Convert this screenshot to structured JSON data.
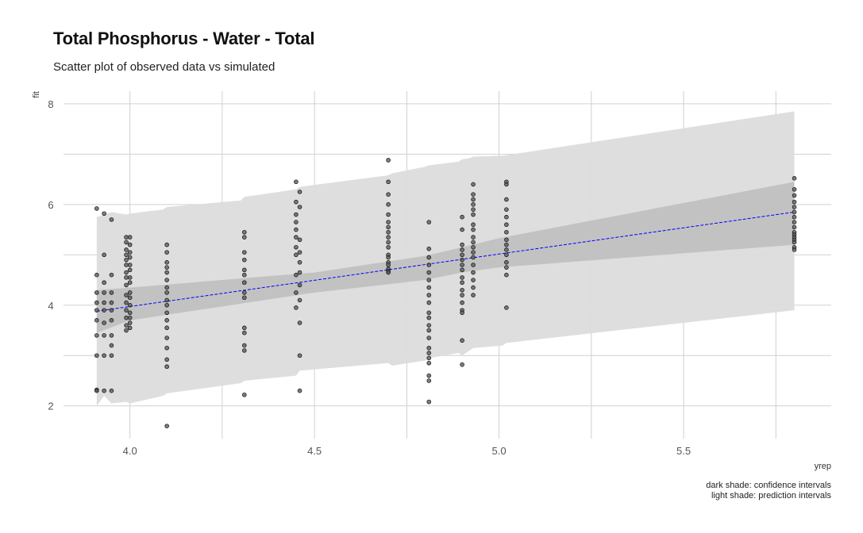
{
  "chart_data": {
    "type": "scatter",
    "title": "Total Phosphorus - Water - Total",
    "subtitle": "Scatter plot of observed data vs simulated",
    "xlabel": "yrep",
    "ylabel": "fit",
    "xlim": [
      3.82,
      5.9
    ],
    "ylim": [
      1.35,
      8.25
    ],
    "x_ticks": [
      "4.0",
      "4.5",
      "5.0",
      "5.5"
    ],
    "x_tick_values": [
      4.0,
      4.5,
      5.0,
      5.5
    ],
    "y_ticks": [
      "2",
      "4",
      "6",
      "8"
    ],
    "y_tick_values": [
      2,
      4,
      6,
      8
    ],
    "grid": true,
    "caption": [
      "dark shade: confidence intervals",
      "light shade: prediction intervals"
    ],
    "colors": {
      "points": "#555555",
      "point_outline": "#1a1a1a",
      "fit_line": "#0000ff",
      "confidence_band": "#bdbdbd",
      "prediction_band": "#dcdcdc",
      "grid": "#d0d0d0"
    },
    "fit_line": {
      "x": [
        3.91,
        5.8
      ],
      "y": [
        3.88,
        5.85
      ]
    },
    "confidence_band": {
      "x": [
        3.91,
        4.0,
        4.5,
        4.8,
        4.9,
        5.0,
        5.8
      ],
      "upper": [
        4.3,
        4.35,
        4.65,
        4.98,
        5.15,
        5.33,
        6.45
      ],
      "lower": [
        3.45,
        3.7,
        4.25,
        4.5,
        4.65,
        4.75,
        5.2
      ]
    },
    "prediction_band": {
      "x": [
        3.91,
        3.93,
        3.95,
        3.99,
        4.0,
        4.09,
        4.1,
        4.3,
        4.31,
        4.45,
        4.46,
        4.7,
        4.71,
        4.8,
        4.81,
        4.89,
        4.9,
        4.92,
        4.93,
        5.01,
        5.02,
        5.8
      ],
      "upper": [
        5.75,
        5.8,
        5.85,
        5.8,
        5.82,
        5.9,
        5.95,
        6.08,
        6.15,
        6.3,
        6.35,
        6.58,
        6.62,
        6.75,
        6.78,
        6.85,
        6.9,
        6.92,
        6.95,
        6.97,
        6.98,
        7.85
      ],
      "lower": [
        2.0,
        2.2,
        2.05,
        2.08,
        2.05,
        2.2,
        2.25,
        2.45,
        2.5,
        2.6,
        2.7,
        2.85,
        2.8,
        2.9,
        2.95,
        3.05,
        3.0,
        3.1,
        3.15,
        3.2,
        3.25,
        3.9
      ]
    },
    "points": {
      "x": [
        3.91,
        3.91,
        3.91,
        3.91,
        3.91,
        3.91,
        3.91,
        3.91,
        3.91,
        3.91,
        3.93,
        3.93,
        3.93,
        3.93,
        3.93,
        3.93,
        3.93,
        3.93,
        3.93,
        3.93,
        3.95,
        3.95,
        3.95,
        3.95,
        3.95,
        3.95,
        3.95,
        3.95,
        3.95,
        3.95,
        3.99,
        3.99,
        3.99,
        3.99,
        3.99,
        3.99,
        3.99,
        3.99,
        3.99,
        3.99,
        3.99,
        3.99,
        3.99,
        3.99,
        3.99,
        4.0,
        4.0,
        4.0,
        4.0,
        4.0,
        4.0,
        4.0,
        4.0,
        4.0,
        4.0,
        4.0,
        4.0,
        4.0,
        4.0,
        4.0,
        4.1,
        4.1,
        4.1,
        4.1,
        4.1,
        4.1,
        4.1,
        4.1,
        4.1,
        4.1,
        4.1,
        4.1,
        4.1,
        4.1,
        4.1,
        4.1,
        4.1,
        4.1,
        4.31,
        4.31,
        4.31,
        4.31,
        4.31,
        4.31,
        4.31,
        4.31,
        4.31,
        4.31,
        4.31,
        4.31,
        4.31,
        4.31,
        4.45,
        4.45,
        4.45,
        4.45,
        4.45,
        4.45,
        4.45,
        4.45,
        4.45,
        4.45,
        4.45,
        4.46,
        4.46,
        4.46,
        4.46,
        4.46,
        4.46,
        4.46,
        4.46,
        4.46,
        4.46,
        4.46,
        4.7,
        4.7,
        4.7,
        4.7,
        4.7,
        4.7,
        4.7,
        4.7,
        4.7,
        4.7,
        4.7,
        4.7,
        4.7,
        4.7,
        4.7,
        4.7,
        4.7,
        4.7,
        4.81,
        4.81,
        4.81,
        4.81,
        4.81,
        4.81,
        4.81,
        4.81,
        4.81,
        4.81,
        4.81,
        4.81,
        4.81,
        4.81,
        4.81,
        4.81,
        4.81,
        4.81,
        4.81,
        4.81,
        4.81,
        4.9,
        4.9,
        4.9,
        4.9,
        4.9,
        4.9,
        4.9,
        4.9,
        4.9,
        4.9,
        4.9,
        4.9,
        4.9,
        4.9,
        4.9,
        4.9,
        4.9,
        4.93,
        4.93,
        4.93,
        4.93,
        4.93,
        4.93,
        4.93,
        4.93,
        4.93,
        4.93,
        4.93,
        4.93,
        4.93,
        4.93,
        4.93,
        4.93,
        4.93,
        4.93,
        5.02,
        5.02,
        5.02,
        5.02,
        5.02,
        5.02,
        5.02,
        5.02,
        5.02,
        5.02,
        5.02,
        5.02,
        5.02,
        5.02,
        5.02,
        5.8,
        5.8,
        5.8,
        5.8,
        5.8,
        5.8,
        5.8,
        5.8,
        5.8,
        5.8,
        5.8,
        5.8,
        5.8,
        5.8,
        5.8,
        5.8
      ],
      "y": [
        5.92,
        4.6,
        4.25,
        4.05,
        3.9,
        3.7,
        3.4,
        3.0,
        2.32,
        2.3,
        5.82,
        5.0,
        4.45,
        4.25,
        4.05,
        3.9,
        3.65,
        3.4,
        3.0,
        2.3,
        5.7,
        4.6,
        4.25,
        4.05,
        3.9,
        3.7,
        3.4,
        3.2,
        3.0,
        2.3,
        5.35,
        5.25,
        5.1,
        5.0,
        4.9,
        4.8,
        4.65,
        4.55,
        4.4,
        4.2,
        4.05,
        3.9,
        3.75,
        3.6,
        3.5,
        5.35,
        5.2,
        5.05,
        4.95,
        4.8,
        4.7,
        4.55,
        4.45,
        4.25,
        4.15,
        4.0,
        3.85,
        3.75,
        3.65,
        3.55,
        5.2,
        5.05,
        4.85,
        4.75,
        4.65,
        4.5,
        4.35,
        4.25,
        4.1,
        4.0,
        3.85,
        3.7,
        3.55,
        3.35,
        3.15,
        2.92,
        2.78,
        1.6,
        5.45,
        5.35,
        5.05,
        4.9,
        4.7,
        4.6,
        4.45,
        4.25,
        4.15,
        3.55,
        3.45,
        3.2,
        3.1,
        2.22,
        6.45,
        6.05,
        5.8,
        5.65,
        5.5,
        5.35,
        5.15,
        5.0,
        4.6,
        4.25,
        3.95,
        6.25,
        5.95,
        5.3,
        5.05,
        4.85,
        4.65,
        4.4,
        4.1,
        3.65,
        3.0,
        2.3,
        6.88,
        6.45,
        6.2,
        6.0,
        5.8,
        5.65,
        5.55,
        5.45,
        5.35,
        5.25,
        5.15,
        5.0,
        4.95,
        4.85,
        4.8,
        4.72,
        4.68,
        4.65,
        5.65,
        5.12,
        4.95,
        4.8,
        4.65,
        4.5,
        4.35,
        4.2,
        4.05,
        3.85,
        3.75,
        3.6,
        3.5,
        3.35,
        3.15,
        3.05,
        2.95,
        2.85,
        2.6,
        2.5,
        2.08,
        5.75,
        5.5,
        5.2,
        5.1,
        5.0,
        4.9,
        4.8,
        4.7,
        4.55,
        4.45,
        4.3,
        4.2,
        4.05,
        3.9,
        3.85,
        3.3,
        2.82,
        6.4,
        6.2,
        6.1,
        6.0,
        5.9,
        5.8,
        5.6,
        5.5,
        5.35,
        5.25,
        5.15,
        5.05,
        4.95,
        4.8,
        4.65,
        4.5,
        4.35,
        4.2,
        6.45,
        6.4,
        6.1,
        5.9,
        5.75,
        5.6,
        5.45,
        5.3,
        5.2,
        5.1,
        5.0,
        4.85,
        4.75,
        4.6,
        3.95,
        6.52,
        6.3,
        6.18,
        6.05,
        5.95,
        5.85,
        5.75,
        5.65,
        5.55,
        5.45,
        5.4,
        5.35,
        5.3,
        5.25,
        5.15,
        5.1
      ]
    }
  }
}
